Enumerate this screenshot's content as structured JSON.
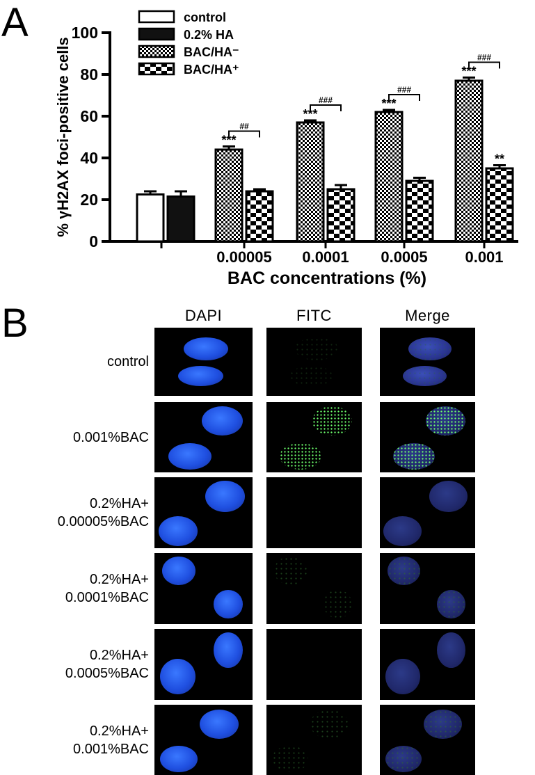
{
  "panel_a_label": "A",
  "panel_b_label": "B",
  "chart_data": {
    "type": "bar",
    "ylabel": "% γH2AX foci-positive cells",
    "xlabel": "BAC concentrations (%)",
    "ylim": [
      0,
      100
    ],
    "yticks": [
      0,
      20,
      40,
      60,
      80,
      100
    ],
    "legend_position": "top-left",
    "groups": [
      {
        "label": "",
        "bars": [
          {
            "series": "control",
            "value": 22.5,
            "error": 1.5
          },
          {
            "series": "0.2% HA",
            "value": 21.5,
            "error": 2.5
          }
        ]
      },
      {
        "label": "0.00005",
        "bars": [
          {
            "series": "BAC/HA-",
            "value": 44,
            "error": 1.5,
            "annotation": "***"
          },
          {
            "series": "BAC/HA+",
            "value": 24,
            "error": 1.0
          }
        ],
        "bracket": "##"
      },
      {
        "label": "0.0001",
        "bars": [
          {
            "series": "BAC/HA-",
            "value": 57,
            "error": 1.0,
            "annotation": "***"
          },
          {
            "series": "BAC/HA+",
            "value": 25,
            "error": 2.0
          }
        ],
        "bracket": "###"
      },
      {
        "label": "0.0005",
        "bars": [
          {
            "series": "BAC/HA-",
            "value": 62,
            "error": 1.0,
            "annotation": "***"
          },
          {
            "series": "BAC/HA+",
            "value": 29,
            "error": 1.5
          }
        ],
        "bracket": "###"
      },
      {
        "label": "0.001",
        "bars": [
          {
            "series": "BAC/HA-",
            "value": 77,
            "error": 1.5,
            "annotation": "***"
          },
          {
            "series": "BAC/HA+",
            "value": 35,
            "error": 1.5,
            "annotation": "**"
          }
        ],
        "bracket": "###"
      }
    ],
    "legend": [
      {
        "series": "control",
        "label": "control"
      },
      {
        "series": "0.2% HA",
        "label": "0.2% HA"
      },
      {
        "series": "BAC/HA-",
        "label": "BAC/HA⁻"
      },
      {
        "series": "BAC/HA+",
        "label": "BAC/HA⁺"
      }
    ]
  },
  "micrographs": {
    "columns": [
      "DAPI",
      "FITC",
      "Merge"
    ],
    "rows": [
      {
        "label_lines": [
          "control"
        ],
        "foci": "faint"
      },
      {
        "label_lines": [
          "0.001%BAC"
        ],
        "foci": "bright"
      },
      {
        "label_lines": [
          "0.2%HA+",
          "0.00005%BAC"
        ],
        "foci": "none"
      },
      {
        "label_lines": [
          "0.2%HA+",
          "0.0001%BAC"
        ],
        "foci": "sparse"
      },
      {
        "label_lines": [
          "0.2%HA+",
          "0.0005%BAC"
        ],
        "foci": "none"
      },
      {
        "label_lines": [
          "0.2%HA+",
          "0.001%BAC"
        ],
        "foci": "sparse"
      }
    ]
  }
}
